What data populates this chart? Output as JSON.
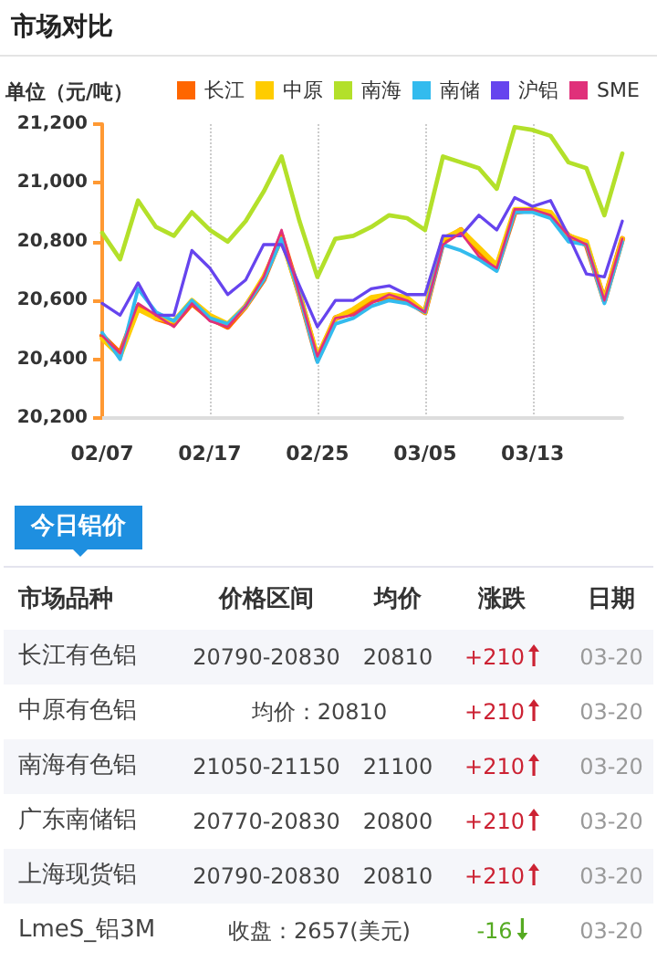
{
  "chart_data": [
    {
      "type": "line",
      "title": "市场对比",
      "ylabel": "单位（元/吨）",
      "categories": [
        "02/07",
        null,
        null,
        null,
        null,
        null,
        "02/17",
        null,
        null,
        null,
        null,
        null,
        "02/25",
        null,
        null,
        null,
        null,
        null,
        "03/05",
        null,
        null,
        null,
        null,
        null,
        "03/13",
        null,
        null,
        null,
        null,
        null
      ],
      "series": [
        {
          "name": "长江",
          "color": "#ff6600",
          "values": [
            20480,
            20420,
            20580,
            20540,
            20520,
            20590,
            20540,
            20510,
            20580,
            20670,
            20820,
            20620,
            20400,
            20540,
            20560,
            20600,
            20610,
            20600,
            20560,
            20800,
            20840,
            20770,
            20710,
            20900,
            20910,
            20890,
            20820,
            20790,
            20600,
            20810
          ]
        },
        {
          "name": "中原",
          "color": "#ffcc00",
          "values": [
            20470,
            20410,
            20570,
            20540,
            20530,
            20600,
            20550,
            20520,
            20580,
            20680,
            20810,
            20620,
            20410,
            20540,
            20570,
            20610,
            20620,
            20610,
            20560,
            20810,
            20840,
            20780,
            20720,
            20910,
            20910,
            20900,
            20820,
            20800,
            20600,
            20810
          ]
        },
        {
          "name": "南海",
          "color": "#b3e02a",
          "values": [
            20830,
            20740,
            20940,
            20850,
            20820,
            20900,
            20840,
            20800,
            20870,
            20970,
            21090,
            20870,
            20680,
            20810,
            20820,
            20850,
            20890,
            20880,
            20840,
            21090,
            21070,
            21050,
            20980,
            21190,
            21180,
            21160,
            21070,
            21050,
            20890,
            21100
          ]
        },
        {
          "name": "南储",
          "color": "#33bbee",
          "values": [
            20490,
            20400,
            20640,
            20560,
            20530,
            20600,
            20540,
            20520,
            20580,
            20670,
            20810,
            20620,
            20390,
            20520,
            20540,
            20580,
            20600,
            20590,
            20560,
            20790,
            20770,
            20740,
            20700,
            20900,
            20900,
            20880,
            20800,
            20790,
            20590,
            20800
          ]
        },
        {
          "name": "沪铝",
          "color": "#6644ee",
          "values": [
            20590,
            20550,
            20660,
            20550,
            20550,
            20770,
            20710,
            20620,
            20670,
            20790,
            20790,
            20650,
            20510,
            20600,
            20600,
            20640,
            20650,
            20620,
            20620,
            20820,
            20820,
            20890,
            20840,
            20950,
            20920,
            20940,
            20820,
            20690,
            20680,
            20870
          ]
        },
        {
          "name": "SME",
          "color": "#e0307a",
          "values": [
            20480,
            20420,
            20590,
            20550,
            20510,
            20590,
            20530,
            20510,
            20580,
            20680,
            20840,
            20620,
            20410,
            20540,
            20550,
            20590,
            20620,
            20600,
            20560,
            20790,
            20830,
            20750,
            20710,
            20910,
            20910,
            20890,
            20820,
            20790,
            20600,
            20810
          ]
        }
      ],
      "ylim": [
        20200,
        21200
      ],
      "yticks": [
        {
          "value": 20200,
          "label": "20,200"
        },
        {
          "value": 20400,
          "label": "20,400"
        },
        {
          "value": 20600,
          "label": "20,600"
        },
        {
          "value": 20800,
          "label": "20,800"
        },
        {
          "value": 21000,
          "label": "21,000"
        },
        {
          "value": 21200,
          "label": "21,200"
        }
      ],
      "grid": "x",
      "legend": "top",
      "marker": "none",
      "line_style": "solid"
    },
    {
      "type": "other",
      "title": "今日铝价",
      "categories": [
        "市场品种",
        "价格区间",
        "均价",
        "涨跌",
        "日期"
      ],
      "y_categories": [
        "长江有色铝",
        "中原有色铝",
        "南海有色铝",
        "广东南储铝",
        "上海现货铝",
        "LmeS_铝3M"
      ],
      "cell_labels": [
        [
          "20790-20830",
          "20810",
          "+210",
          "03-20"
        ],
        [
          "均价：20810",
          null,
          "+210",
          "03-20"
        ],
        [
          "21050-21150",
          "21100",
          "+210",
          "03-20"
        ],
        [
          "20770-20830",
          "20800",
          "+210",
          "03-20"
        ],
        [
          "20790-20830",
          "20810",
          "+210",
          "03-20"
        ],
        [
          "收盘：2657(美元)",
          null,
          "-16",
          "03-20"
        ]
      ],
      "colors": [
        "#cc2233",
        "#cc2233",
        "#cc2233",
        "#cc2233",
        "#cc2233",
        "#55aa22"
      ]
    }
  ]
}
